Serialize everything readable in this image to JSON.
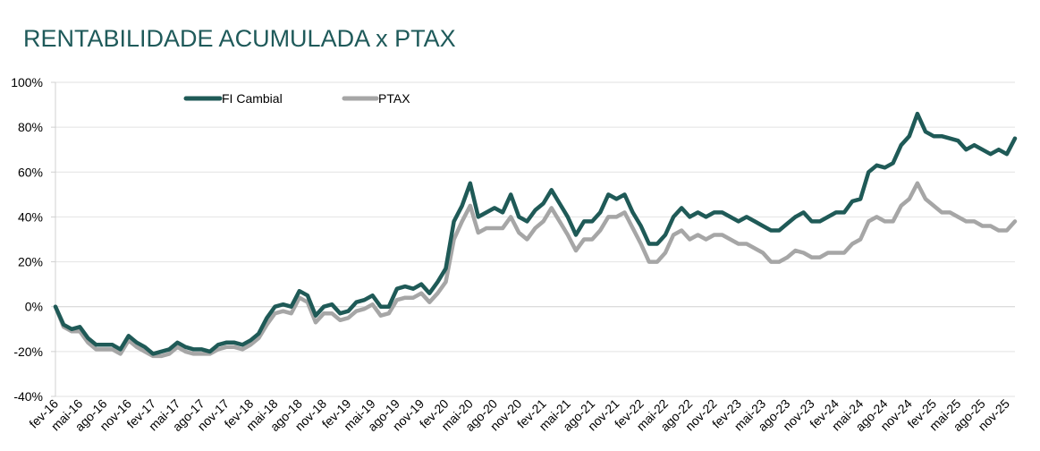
{
  "chart_data": {
    "type": "line",
    "title": "RENTABILIDADE ACUMULADA x PTAX",
    "xlabel": "",
    "ylabel": "",
    "ylim": [
      -40,
      100
    ],
    "yticks": [
      "-40%",
      "-20%",
      "0%",
      "20%",
      "40%",
      "60%",
      "80%",
      "100%"
    ],
    "ytick_values": [
      -40,
      -20,
      0,
      20,
      40,
      60,
      80,
      100
    ],
    "grid": true,
    "legend_position": "top-left",
    "xtick_labels": [
      "fev-16",
      "mai-16",
      "ago-16",
      "nov-16",
      "fev-17",
      "mai-17",
      "ago-17",
      "nov-17",
      "fev-18",
      "mai-18",
      "ago-18",
      "nov-18",
      "fev-19",
      "mai-19",
      "ago-19",
      "nov-19",
      "fev-20",
      "mai-20",
      "ago-20",
      "nov-20",
      "fev-21",
      "mai-21",
      "ago-21",
      "nov-21",
      "fev-22",
      "mai-22",
      "ago-22",
      "nov-22",
      "fev-23",
      "mai-23",
      "ago-23",
      "nov-23",
      "fev-24",
      "mai-24",
      "ago-24",
      "nov-24",
      "fev-25",
      "mai-25",
      "ago-25",
      "nov-25"
    ],
    "x_note": "monthly points starting fev-16",
    "series": [
      {
        "name": "FI Cambial",
        "color": "#1f5a57",
        "values": [
          0,
          -8,
          -10,
          -9,
          -14,
          -17,
          -17,
          -17,
          -19,
          -13,
          -16,
          -18,
          -21,
          -20,
          -19,
          -16,
          -18,
          -19,
          -19,
          -20,
          -17,
          -16,
          -16,
          -17,
          -15,
          -12,
          -5,
          0,
          1,
          0,
          7,
          5,
          -4,
          0,
          1,
          -3,
          -2,
          2,
          3,
          5,
          0,
          0,
          8,
          9,
          8,
          10,
          6,
          11,
          17,
          38,
          45,
          55,
          40,
          42,
          44,
          42,
          50,
          40,
          38,
          43,
          46,
          52,
          46,
          40,
          32,
          38,
          38,
          42,
          50,
          48,
          50,
          42,
          36,
          28,
          28,
          32,
          40,
          44,
          40,
          42,
          40,
          42,
          42,
          40,
          38,
          40,
          38,
          36,
          34,
          34,
          37,
          40,
          42,
          38,
          38,
          40,
          42,
          42,
          47,
          48,
          60,
          63,
          62,
          64,
          72,
          76,
          86,
          78,
          76,
          76,
          75,
          74,
          70,
          72,
          70,
          68,
          70,
          68,
          75
        ]
      },
      {
        "name": "PTAX",
        "color": "#a6a6a6",
        "values": [
          0,
          -9,
          -11,
          -11,
          -16,
          -19,
          -19,
          -19,
          -21,
          -15,
          -18,
          -20,
          -22,
          -22,
          -21,
          -18,
          -20,
          -21,
          -21,
          -21,
          -19,
          -18,
          -18,
          -19,
          -17,
          -14,
          -8,
          -3,
          -2,
          -3,
          4,
          2,
          -7,
          -3,
          -3,
          -6,
          -5,
          -2,
          -1,
          1,
          -4,
          -3,
          3,
          4,
          4,
          6,
          2,
          6,
          11,
          30,
          38,
          45,
          33,
          35,
          35,
          35,
          40,
          33,
          30,
          35,
          38,
          44,
          38,
          32,
          25,
          30,
          30,
          34,
          40,
          40,
          42,
          35,
          28,
          20,
          20,
          24,
          32,
          34,
          30,
          32,
          30,
          32,
          32,
          30,
          28,
          28,
          26,
          24,
          20,
          20,
          22,
          25,
          24,
          22,
          22,
          24,
          24,
          24,
          28,
          30,
          38,
          40,
          38,
          38,
          45,
          48,
          55,
          48,
          45,
          42,
          42,
          40,
          38,
          38,
          36,
          36,
          34,
          34,
          38
        ]
      }
    ]
  }
}
